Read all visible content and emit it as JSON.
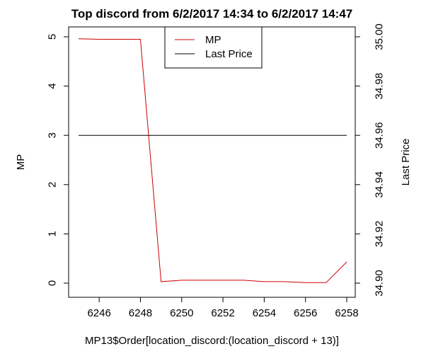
{
  "chart_data": {
    "type": "line",
    "title": "Top discord from 6/2/2017 14:34 to 6/2/2017 14:47",
    "xlabel": "MP13$Order[location_discord:(location_discord + 13)]",
    "ylabel_left": "MP",
    "ylabel_right": "Last Price",
    "xlim": [
      6245,
      6258
    ],
    "x_ticks": [
      6246,
      6248,
      6250,
      6252,
      6254,
      6256,
      6258
    ],
    "ylim_left": [
      0,
      5
    ],
    "y_ticks_left": [
      0,
      1,
      2,
      3,
      4,
      5
    ],
    "ylim_right": [
      34.9,
      35.0
    ],
    "y_ticks_right": [
      "34.90",
      "34.92",
      "34.94",
      "34.96",
      "34.98",
      "35.00"
    ],
    "grid": false,
    "legend_placement": "top-center",
    "series": [
      {
        "name": "MP",
        "color": "#cc0000",
        "axis": "left",
        "x": [
          6245,
          6246,
          6247,
          6248,
          6249,
          6250,
          6251,
          6252,
          6253,
          6254,
          6255,
          6256,
          6257,
          6258
        ],
        "values": [
          4.96,
          4.95,
          4.95,
          4.95,
          0.03,
          0.06,
          0.06,
          0.06,
          0.06,
          0.03,
          0.03,
          0.01,
          0.01,
          0.43
        ]
      },
      {
        "name": "Last Price",
        "color": "#000000",
        "axis": "right",
        "x": [
          6245,
          6258
        ],
        "values": [
          34.96,
          34.96
        ]
      }
    ]
  }
}
